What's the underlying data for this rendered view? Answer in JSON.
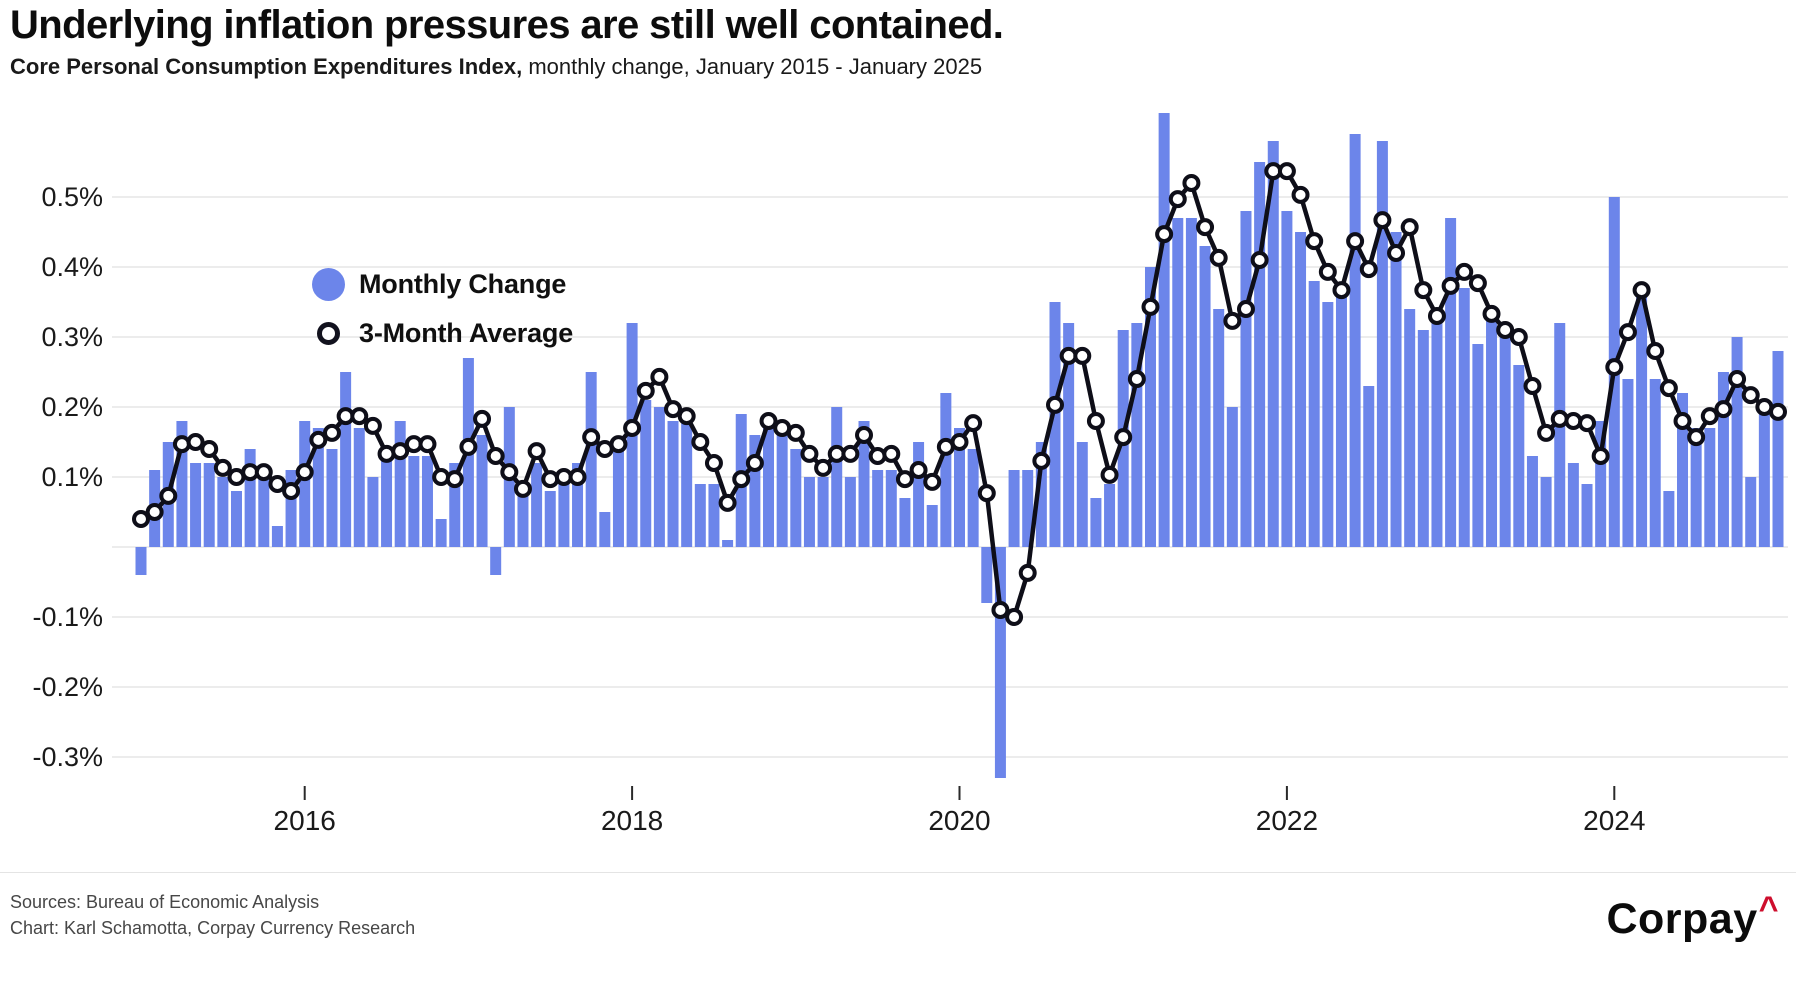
{
  "header": {
    "title": "Underlying inflation pressures are still well contained.",
    "subtitle_bold": "Core Personal Consumption Expenditures Index,",
    "subtitle_rest": " monthly change, January 2015 - January 2025"
  },
  "legend": {
    "monthly_label": "Monthly Change",
    "average_label": "3-Month Average"
  },
  "footer": {
    "sources": "Sources: Bureau of Economic Analysis",
    "credit": "Chart: Karl Schamotta, Corpay Currency Research",
    "logo_text": "Corpay",
    "logo_caret": "^"
  },
  "colors": {
    "bar": "#6C85EA",
    "line": "#0e0e18",
    "grid": "#e6e6e6",
    "axis_text": "#1a1a1a",
    "tick_mark": "#2a2a2a",
    "logo_red": "#CE0E2D"
  },
  "chart_data": {
    "type": "bar",
    "title": "Underlying inflation pressures are still well contained.",
    "subtitle": "Core Personal Consumption Expenditures Index, monthly change, January 2015 - January 2025",
    "x_start": "2015-01",
    "x_end": "2025-01",
    "frequency": "monthly",
    "n_points": 121,
    "ylim": [
      -0.35,
      0.65
    ],
    "grid": true,
    "legend_position": "inside-top-left",
    "yticks": [
      {
        "value": 0.5,
        "label": "0.5%"
      },
      {
        "value": 0.4,
        "label": "0.4%"
      },
      {
        "value": 0.3,
        "label": "0.3%"
      },
      {
        "value": 0.2,
        "label": "0.2%"
      },
      {
        "value": 0.1,
        "label": "0.1%"
      },
      {
        "value": 0.0,
        "label": ""
      },
      {
        "value": -0.1,
        "label": "-0.1%"
      },
      {
        "value": -0.2,
        "label": "-0.2%"
      },
      {
        "value": -0.3,
        "label": "-0.3%"
      }
    ],
    "xticks": [
      {
        "month_index": 12,
        "label": "2016"
      },
      {
        "month_index": 36,
        "label": "2018"
      },
      {
        "month_index": 60,
        "label": "2020"
      },
      {
        "month_index": 84,
        "label": "2022"
      },
      {
        "month_index": 108,
        "label": "2024"
      }
    ],
    "series": [
      {
        "name": "Monthly Change",
        "type": "bar",
        "values": [
          -0.04,
          0.11,
          0.15,
          0.18,
          0.12,
          0.12,
          0.1,
          0.08,
          0.14,
          0.1,
          0.03,
          0.11,
          0.18,
          0.17,
          0.14,
          0.25,
          0.17,
          0.1,
          0.13,
          0.18,
          0.13,
          0.13,
          0.04,
          0.12,
          0.27,
          0.16,
          -0.04,
          0.2,
          0.09,
          0.12,
          0.08,
          0.1,
          0.12,
          0.25,
          0.05,
          0.14,
          0.32,
          0.21,
          0.2,
          0.18,
          0.18,
          0.09,
          0.09,
          0.01,
          0.19,
          0.16,
          0.19,
          0.16,
          0.14,
          0.1,
          0.1,
          0.2,
          0.1,
          0.18,
          0.11,
          0.11,
          0.07,
          0.15,
          0.06,
          0.22,
          0.17,
          0.14,
          -0.08,
          -0.33,
          0.11,
          0.11,
          0.15,
          0.35,
          0.32,
          0.15,
          0.07,
          0.09,
          0.31,
          0.32,
          0.4,
          0.62,
          0.47,
          0.47,
          0.43,
          0.34,
          0.2,
          0.48,
          0.55,
          0.58,
          0.48,
          0.45,
          0.38,
          0.35,
          0.37,
          0.59,
          0.23,
          0.58,
          0.45,
          0.34,
          0.31,
          0.34,
          0.47,
          0.37,
          0.29,
          0.34,
          0.3,
          0.26,
          0.13,
          0.1,
          0.32,
          0.12,
          0.09,
          0.18,
          0.5,
          0.24,
          0.36,
          0.24,
          0.08,
          0.22,
          0.17,
          0.17,
          0.25,
          0.3,
          0.1,
          0.2,
          0.28
        ]
      },
      {
        "name": "3-Month Average",
        "type": "line",
        "values": [
          0.04,
          0.05,
          0.073,
          0.147,
          0.15,
          0.14,
          0.113,
          0.1,
          0.107,
          0.107,
          0.09,
          0.08,
          0.107,
          0.153,
          0.163,
          0.187,
          0.187,
          0.173,
          0.133,
          0.137,
          0.147,
          0.147,
          0.1,
          0.097,
          0.143,
          0.183,
          0.13,
          0.107,
          0.083,
          0.137,
          0.097,
          0.1,
          0.1,
          0.157,
          0.14,
          0.147,
          0.17,
          0.223,
          0.243,
          0.197,
          0.187,
          0.15,
          0.12,
          0.063,
          0.097,
          0.12,
          0.18,
          0.17,
          0.163,
          0.133,
          0.113,
          0.133,
          0.133,
          0.16,
          0.13,
          0.133,
          0.097,
          0.11,
          0.093,
          0.143,
          0.15,
          0.177,
          0.077,
          -0.09,
          -0.1,
          -0.037,
          0.123,
          0.203,
          0.273,
          0.273,
          0.18,
          0.103,
          0.157,
          0.24,
          0.343,
          0.447,
          0.497,
          0.52,
          0.457,
          0.413,
          0.323,
          0.34,
          0.41,
          0.537,
          0.537,
          0.503,
          0.437,
          0.393,
          0.367,
          0.437,
          0.397,
          0.467,
          0.42,
          0.457,
          0.367,
          0.33,
          0.373,
          0.393,
          0.377,
          0.333,
          0.31,
          0.3,
          0.23,
          0.163,
          0.183,
          0.18,
          0.177,
          0.13,
          0.257,
          0.307,
          0.367,
          0.28,
          0.227,
          0.18,
          0.157,
          0.187,
          0.197,
          0.24,
          0.217,
          0.2,
          0.193
        ]
      }
    ]
  }
}
